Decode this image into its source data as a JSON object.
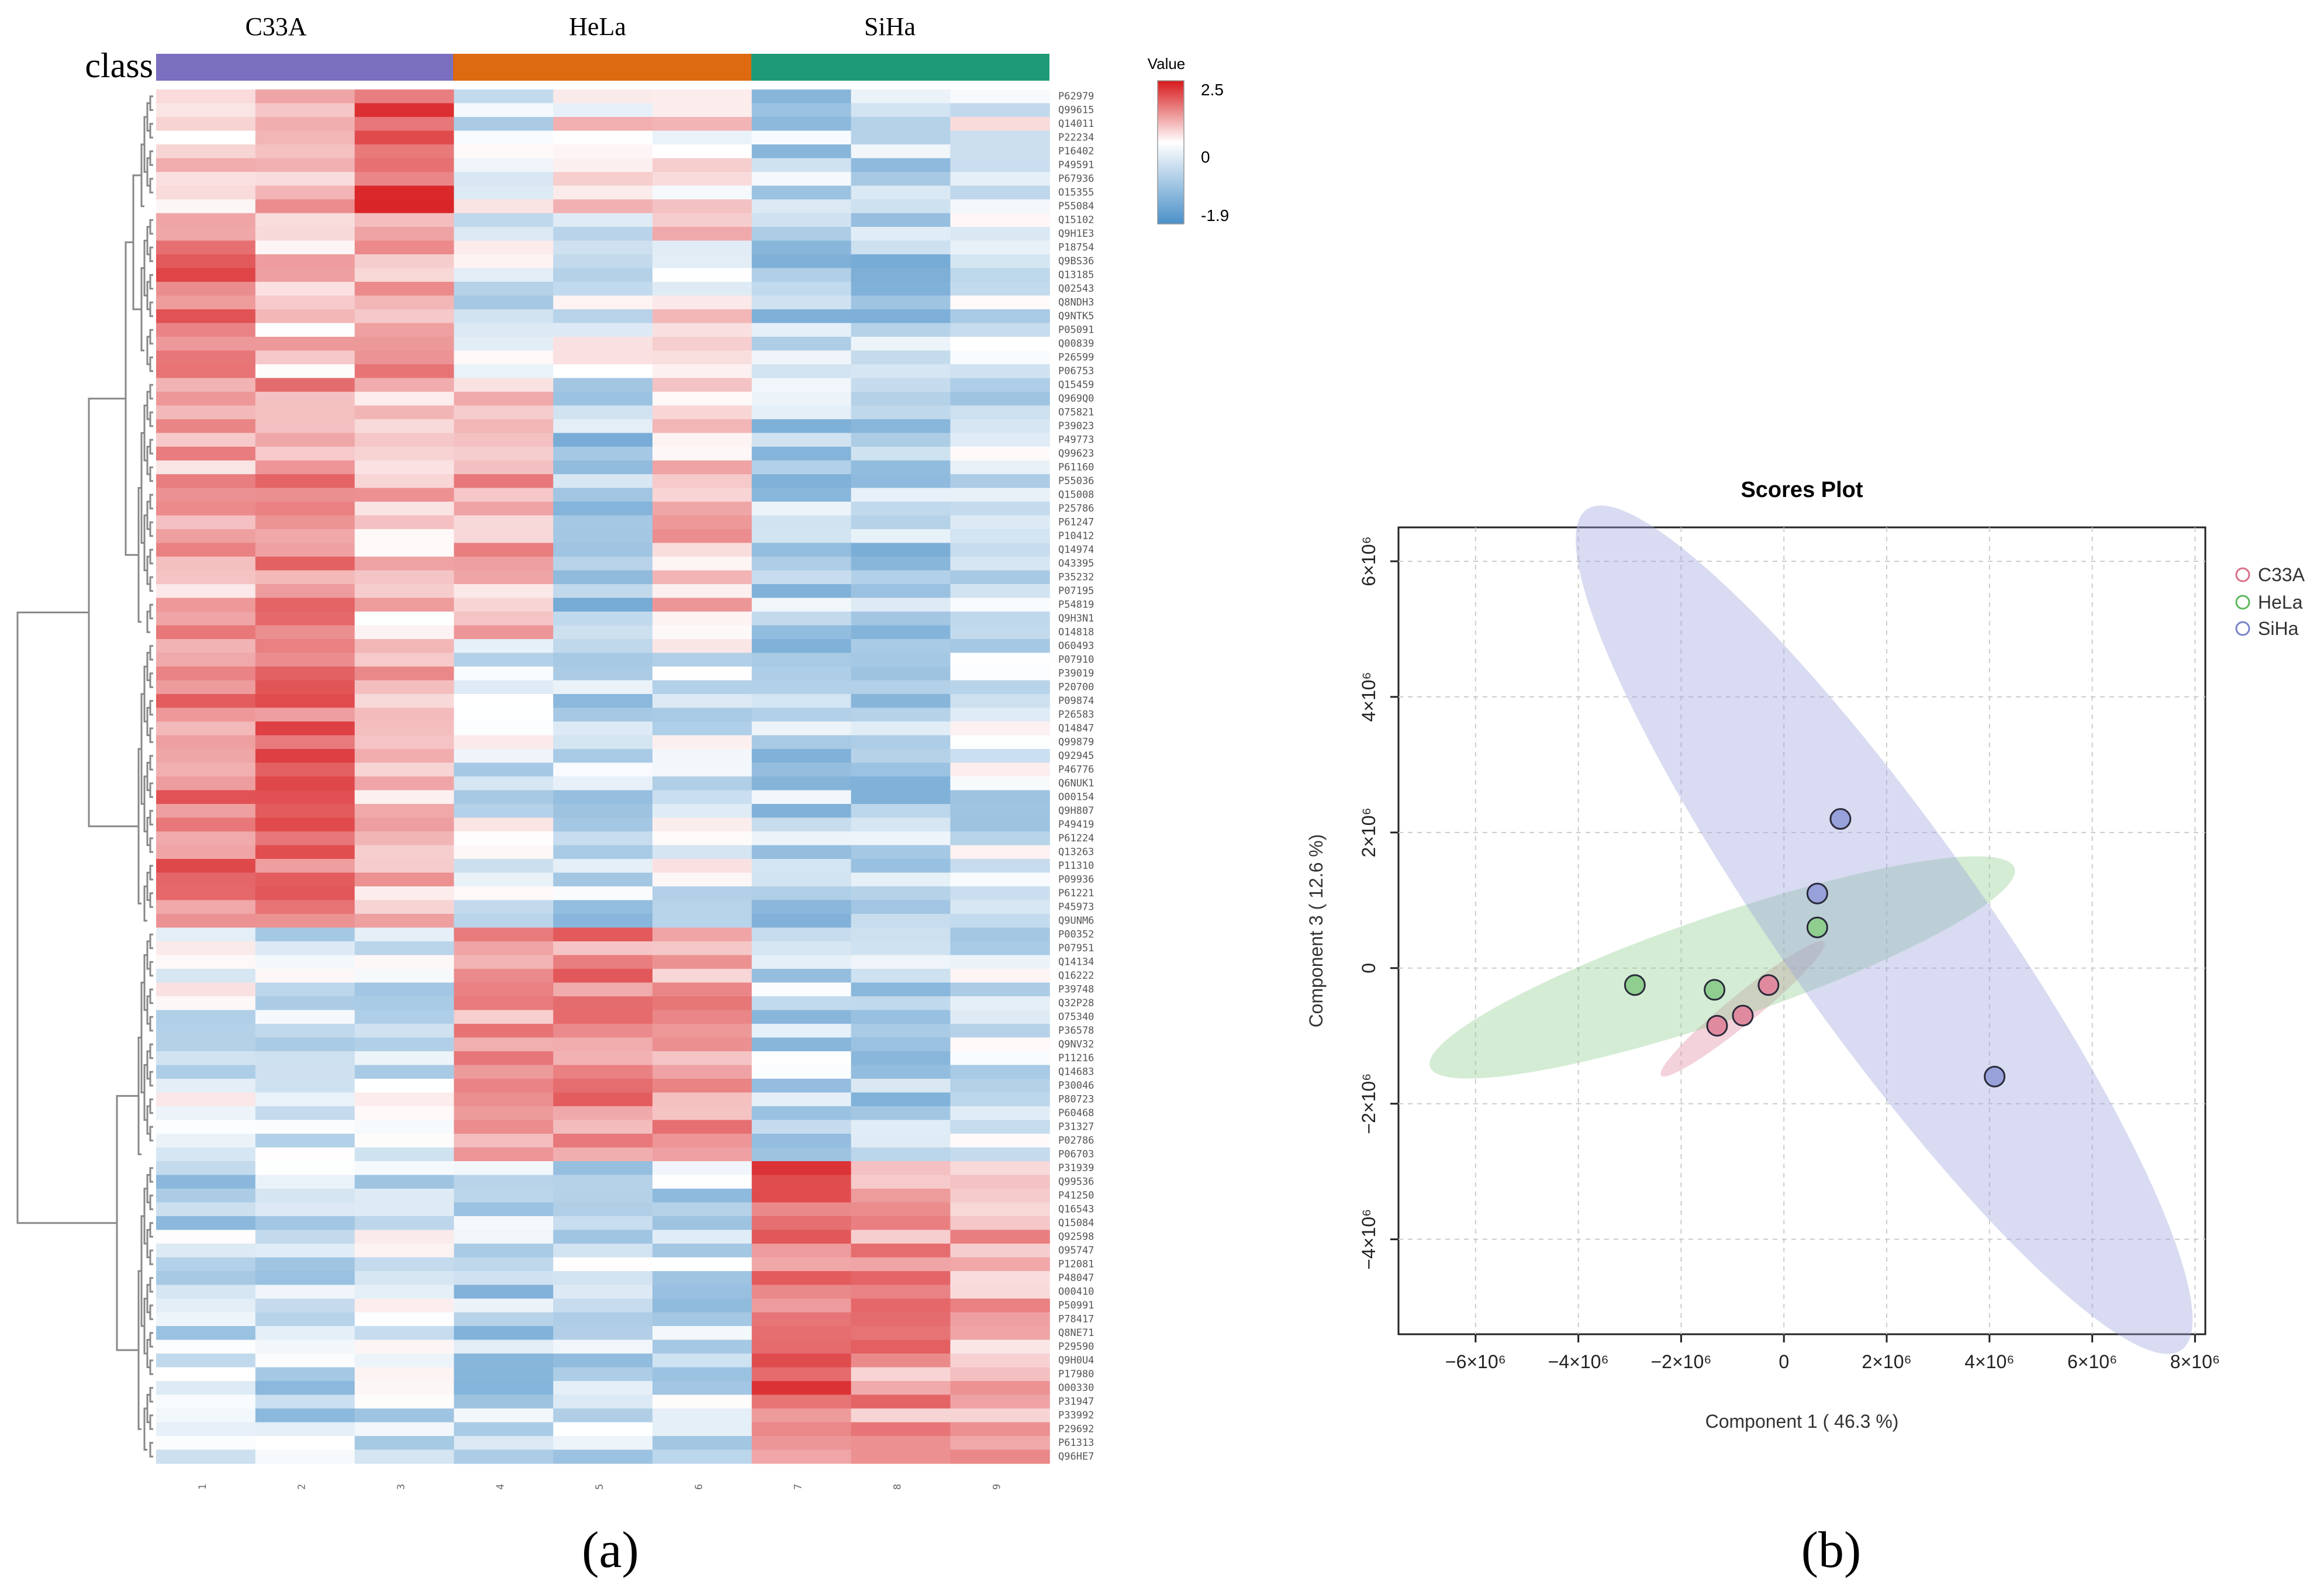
{
  "panel_labels": {
    "a": "(a)",
    "b": "(b)"
  },
  "chart_data": [
    {
      "type": "heatmap",
      "class_label": "class",
      "groups": [
        {
          "name": "C33A",
          "color": "#7b6fbf",
          "columns": [
            "1",
            "2",
            "3"
          ]
        },
        {
          "name": "HeLa",
          "color": "#dd6a10",
          "columns": [
            "4",
            "5",
            "6"
          ]
        },
        {
          "name": "SiHa",
          "color": "#1f9a78",
          "columns": [
            "7",
            "8",
            "9"
          ]
        }
      ],
      "columns": [
        "1",
        "2",
        "3",
        "4",
        "5",
        "6",
        "7",
        "8",
        "9"
      ],
      "legend": {
        "title": "Value",
        "max": "2.5",
        "mid": "0",
        "min": "-1.9",
        "range": [
          -1.9,
          2.5
        ]
      },
      "row_blocks": [
        {
          "rows": [
            "P62979",
            "Q99615",
            "Q14011",
            "P22234",
            "P16402",
            "P49591",
            "P67936",
            "O15355",
            "P55084"
          ],
          "profile": [
            0.4,
            0.9,
            1.9,
            -0.3,
            0.3,
            0.2,
            -0.7,
            -0.7,
            -0.2
          ]
        },
        {
          "rows": [
            "Q15102",
            "Q9H1E3",
            "P18754",
            "Q9BS36",
            "Q13185",
            "Q02543",
            "Q8NDH3",
            "Q9NTK5",
            "P05091",
            "Q00839",
            "P26599",
            "P06753"
          ],
          "profile": [
            1.6,
            0.6,
            0.9,
            -0.3,
            -0.2,
            0.3,
            -0.8,
            -0.8,
            -0.5
          ]
        },
        {
          "rows": [
            "Q15459",
            "Q969Q0",
            "O75821",
            "P39023",
            "P49773",
            "Q99623",
            "P61160",
            "P55036",
            "Q15008",
            "P25786",
            "P61247",
            "P10412",
            "Q14974",
            "O43395",
            "P35232",
            "P07195",
            "P54819",
            "Q9H3N1",
            "O14818"
          ],
          "profile": [
            0.9,
            1.1,
            0.6,
            0.9,
            -0.8,
            0.7,
            -0.8,
            -0.8,
            -0.4
          ]
        },
        {
          "rows": [
            "O60493",
            "P07910",
            "P39019",
            "P20700",
            "P09874",
            "P26583",
            "Q14847",
            "Q99879",
            "Q92945",
            "P46776",
            "Q6NUK1",
            "O00154",
            "Q9H807",
            "P49419",
            "P61224",
            "Q13263",
            "P11310",
            "P09936",
            "P61221",
            "P45973",
            "Q9UNM6"
          ],
          "profile": [
            1.4,
            1.7,
            0.8,
            -0.3,
            -0.7,
            -0.3,
            -0.8,
            -0.7,
            -0.4
          ]
        },
        {
          "rows": [
            "P00352",
            "P07951",
            "Q14134",
            "Q16222",
            "P39748",
            "Q32P28",
            "O75340",
            "P36578",
            "Q9NV32",
            "P11216",
            "Q14683",
            "P30046",
            "P80723",
            "P60468",
            "P31327",
            "P02786",
            "P06703"
          ],
          "profile": [
            -0.3,
            -0.4,
            -0.4,
            1.0,
            1.2,
            1.1,
            -0.6,
            -0.7,
            -0.5
          ]
        },
        {
          "rows": [
            "P31939",
            "Q99536",
            "P41250",
            "Q16543",
            "Q15084",
            "Q92598",
            "O95747",
            "P12081",
            "P48047",
            "O00410",
            "P50991",
            "P78417",
            "Q8NE71",
            "P29590",
            "Q9H0U4",
            "P17980",
            "O00330",
            "P31947",
            "P33992",
            "P29692",
            "P61313",
            "Q96HE7"
          ],
          "profile": [
            -0.6,
            -0.6,
            -0.4,
            -0.7,
            -0.5,
            -0.6,
            1.6,
            1.1,
            0.9
          ]
        }
      ]
    },
    {
      "type": "scatter",
      "title": "Scores Plot",
      "xlabel": "Component 1 ( 46.3 %)",
      "ylabel": "Component 3 ( 12.6 %)",
      "xlim": [
        -7.5,
        8.2
      ],
      "ylim": [
        -5.4,
        6.5
      ],
      "x_ticks": [
        -6,
        -4,
        -2,
        0,
        2,
        4,
        6,
        8
      ],
      "y_ticks": [
        -4,
        -2,
        0,
        2,
        4,
        6
      ],
      "x_tick_labels": [
        "−6×10⁶",
        "−4×10⁶",
        "−2×10⁶",
        "0",
        "2×10⁶",
        "4×10⁶",
        "6×10⁶",
        "8×10⁶"
      ],
      "y_tick_labels": [
        "−4×10⁶",
        "−2×10⁶",
        "0",
        "2×10⁶",
        "4×10⁶",
        "6×10⁶"
      ],
      "units": "x10^6",
      "grid": true,
      "legend_position": "top-right",
      "series": [
        {
          "name": "C33A",
          "color": "#d97089",
          "fill": "#e08aa0",
          "points": [
            [
              -1.3,
              -0.85
            ],
            [
              -0.8,
              -0.7
            ],
            [
              -0.3,
              -0.25
            ]
          ]
        },
        {
          "name": "HeLa",
          "color": "#5cb85c",
          "fill": "#8fce8f",
          "points": [
            [
              -2.9,
              -0.25
            ],
            [
              -1.35,
              -0.32
            ],
            [
              0.65,
              0.6
            ]
          ]
        },
        {
          "name": "SiHa",
          "color": "#7a83c9",
          "fill": "#99a1db",
          "points": [
            [
              0.65,
              1.1
            ],
            [
              1.1,
              2.2
            ],
            [
              4.1,
              -1.6
            ]
          ]
        }
      ]
    }
  ]
}
